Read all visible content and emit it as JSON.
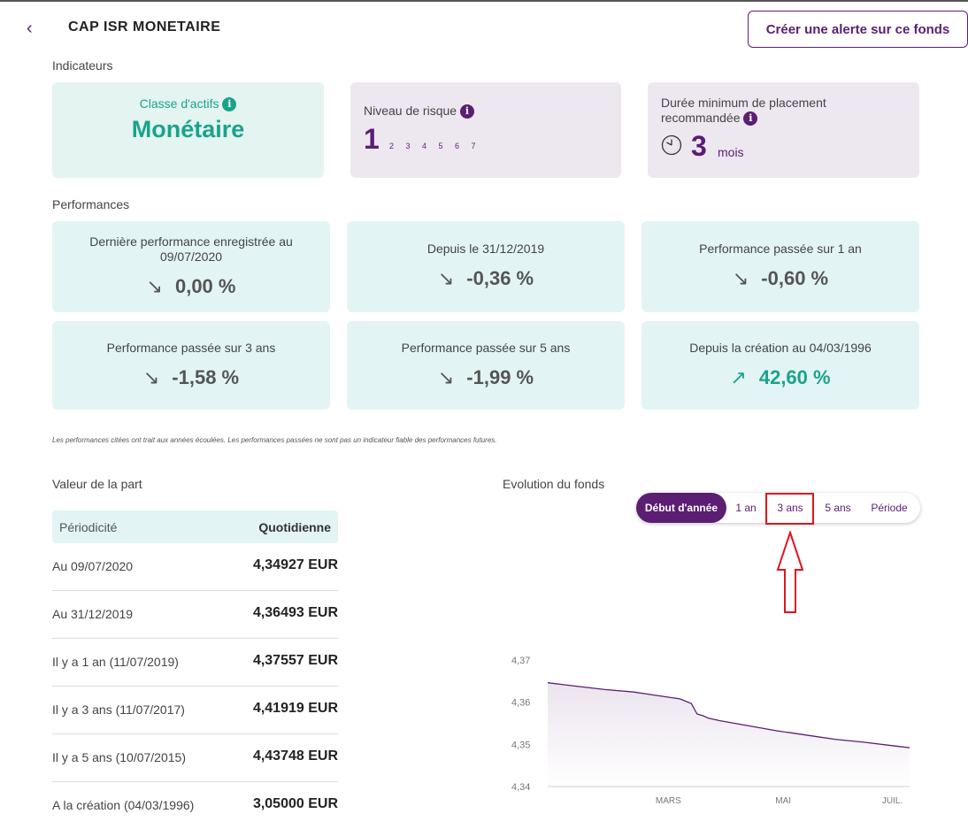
{
  "header": {
    "back_glyph": "‹",
    "title": "CAP ISR MONETAIRE",
    "alert_button": "Créer une alerte sur ce fonds"
  },
  "indicators": {
    "section_label": "Indicateurs",
    "asset_class": {
      "label": "Classe d'actifs",
      "value": "Monétaire"
    },
    "risk": {
      "label": "Niveau de risque",
      "value": "1",
      "scale": [
        "2",
        "3",
        "4",
        "5",
        "6",
        "7"
      ]
    },
    "duration": {
      "label": "Durée minimum de placement recommandée",
      "value": "3",
      "unit": "mois"
    }
  },
  "performances": {
    "section_label": "Performances",
    "cards": [
      {
        "label": "Dernière performance enregistrée au 09/07/2020",
        "value": "0,00 %",
        "direction": "down"
      },
      {
        "label": "Depuis le 31/12/2019",
        "value": "-0,36 %",
        "direction": "down"
      },
      {
        "label": "Performance passée sur 1 an",
        "value": "-0,60 %",
        "direction": "down"
      },
      {
        "label": "Performance passée sur 3 ans",
        "value": "-1,58 %",
        "direction": "down"
      },
      {
        "label": "Performance passée sur 5 ans",
        "value": "-1,99 %",
        "direction": "down"
      },
      {
        "label": "Depuis la création au 04/03/1996",
        "value": "42,60 %",
        "direction": "up"
      }
    ],
    "arrows": {
      "down": "↘",
      "up": "↗"
    },
    "disclaimer": "Les performances citées ont trait aux années écoulées. Les performances passées ne sont pas un indicateur fiable des performances futures."
  },
  "valeur_part": {
    "title": "Valeur de la part",
    "header_left": "Périodicité",
    "header_right": "Quotidienne",
    "rows": [
      {
        "label": "Au 09/07/2020",
        "value": "4,34927 EUR"
      },
      {
        "label": "Au 31/12/2019",
        "value": "4,36493 EUR"
      },
      {
        "label": "Il y a 1 an (11/07/2019)",
        "value": "4,37557 EUR"
      },
      {
        "label": "Il y a 3 ans (11/07/2017)",
        "value": "4,41919 EUR"
      },
      {
        "label": "Il y a 5 ans (10/07/2015)",
        "value": "4,43748 EUR"
      },
      {
        "label": "A la création (04/03/1996)",
        "value": "3,05000 EUR"
      }
    ]
  },
  "evolution": {
    "title": "Evolution du fonds",
    "periods": [
      "Début d'année",
      "1 an",
      "3 ans",
      "5 ans",
      "Période"
    ],
    "active_period": 0,
    "highlighted_period": 2
  },
  "colors": {
    "purple": "#5b1e73",
    "teal": "#1aa38a",
    "highlight": "#e0141e"
  },
  "chart_data": {
    "type": "area",
    "y_ticks": [
      "4,37",
      "4,36",
      "4,35",
      "4,34"
    ],
    "ylim": [
      4.34,
      4.37
    ],
    "x_ticks": [
      "MARS",
      "MAI",
      "JUIL."
    ],
    "x_tick_positions": [
      2.1,
      4.1,
      6.0
    ],
    "xlim": [
      0,
      6.3
    ],
    "series": [
      {
        "x": [
          0,
          0.5,
          1.0,
          1.5,
          1.8,
          2.3,
          2.5,
          2.6,
          2.7,
          2.8,
          3.0,
          3.5,
          4.0,
          4.5,
          5.0,
          5.5,
          6.0,
          6.3
        ],
        "values": [
          4.3646,
          4.3638,
          4.363,
          4.3624,
          4.3618,
          4.3608,
          4.3597,
          4.3572,
          4.3568,
          4.3562,
          4.3556,
          4.3544,
          4.3532,
          4.3522,
          4.3512,
          4.3505,
          4.3497,
          4.3492
        ]
      }
    ],
    "grid": false
  }
}
